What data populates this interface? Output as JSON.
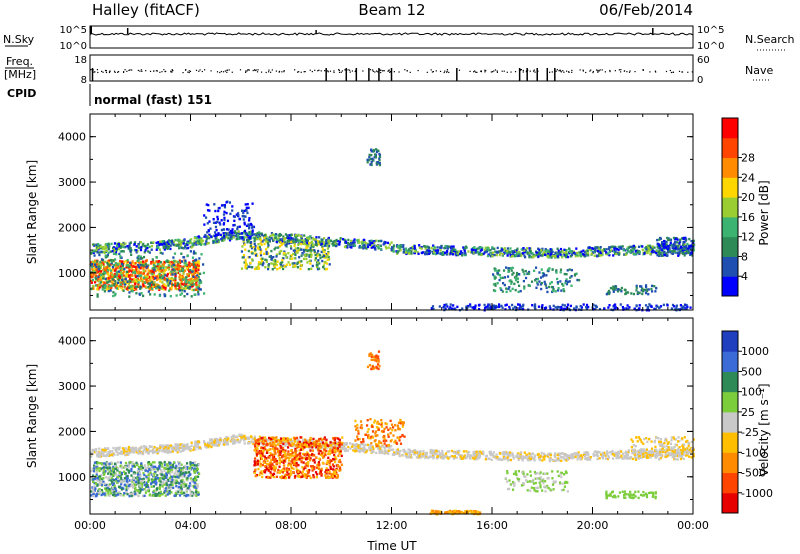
{
  "header": {
    "station": "Halley (fitACF)",
    "beam": "Beam 12",
    "date": "06/Feb/2014"
  },
  "summary_panels": {
    "nsky_label": "N.Sky",
    "nsky_ticks": [
      "10^5",
      "10^0"
    ],
    "nsearch_label": "N.Search",
    "nsearch_ticks": [
      "10^5",
      "10^0"
    ],
    "freq_label_1": "Freq.",
    "freq_label_2": "[MHz]",
    "freq_ticks": [
      "18",
      "8"
    ],
    "nave_label": "Nave",
    "nave_ticks": [
      "60",
      "0"
    ],
    "cpid_label": "CPID",
    "cpid_value": "normal (fast) 151"
  },
  "chart_data": [
    {
      "type": "heatmap",
      "title": "",
      "ylabel": "Slant Range [km]",
      "xlabel": "",
      "x_range_hours": [
        0,
        24
      ],
      "ylim": [
        180,
        4500
      ],
      "yticks": [
        "1000",
        "2000",
        "3000",
        "4000"
      ],
      "colorbar_label": "Power [dB]",
      "colorbar_ticks": [
        "4",
        "8",
        "12",
        "16",
        "20",
        "24",
        "28"
      ],
      "colorbar_colors": [
        "#0000ff",
        "#1f4fb0",
        "#2e8b57",
        "#3cb371",
        "#9acd32",
        "#ffd700",
        "#ff8c00",
        "#ff4500",
        "#ff0000"
      ]
    },
    {
      "type": "heatmap",
      "title": "",
      "ylabel": "Slant Range [km]",
      "xlabel": "Time UT",
      "x_range_hours": [
        0,
        24
      ],
      "ylim": [
        180,
        4500
      ],
      "yticks": [
        "1000",
        "2000",
        "3000",
        "4000"
      ],
      "xticks": [
        "00:00",
        "04:00",
        "08:00",
        "12:00",
        "16:00",
        "20:00",
        "00:00"
      ],
      "colorbar_label": "Velocity [m s⁻¹]",
      "colorbar_ticks": [
        "1000",
        "500",
        "100",
        "25",
        "-25",
        "-100",
        "-500",
        "-1000"
      ],
      "colorbar_colors": [
        "#1f3fbf",
        "#3a6bd6",
        "#2e8b57",
        "#7ccd3c",
        "#c8c8c8",
        "#ffbf00",
        "#ff8c00",
        "#ff4500",
        "#e60000"
      ]
    }
  ]
}
